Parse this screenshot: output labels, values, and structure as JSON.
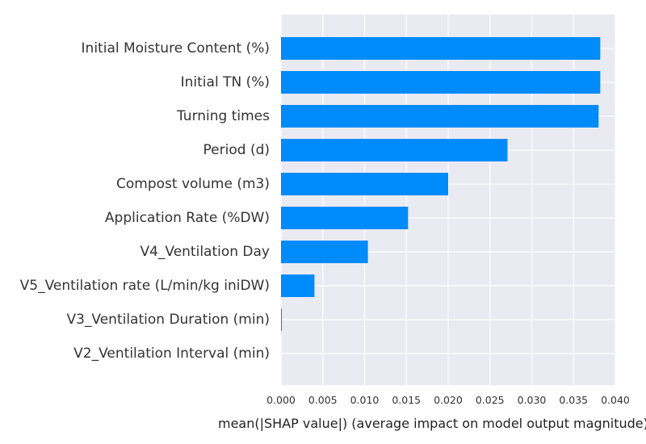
{
  "chart_data": {
    "type": "bar",
    "orientation": "horizontal",
    "categories": [
      "Initial Moisture Content (%)",
      "Initial TN (%)",
      "Turning times",
      "Period (d)",
      "Compost volume (m3)",
      "Application Rate (%DW)",
      "V4_Ventilation Day",
      "V5_Ventilation rate (L/min/kg iniDW)",
      "V3_Ventilation Duration (min)",
      "V2_Ventilation Interval (min)"
    ],
    "values": [
      0.0382,
      0.0382,
      0.038,
      0.0271,
      0.02,
      0.0152,
      0.0104,
      0.004,
      0.0001,
      0.0
    ],
    "xlabel": "mean(|SHAP value|) (average impact on model output magnitude)",
    "xticks": [
      "0.000",
      "0.005",
      "0.010",
      "0.015",
      "0.020",
      "0.025",
      "0.030",
      "0.035",
      "0.040"
    ],
    "xlim": [
      0,
      0.04
    ],
    "grid": true,
    "colors": {
      "bar": "#008bfb",
      "background": "#eaeaf2",
      "grid": "#ffffff"
    }
  }
}
